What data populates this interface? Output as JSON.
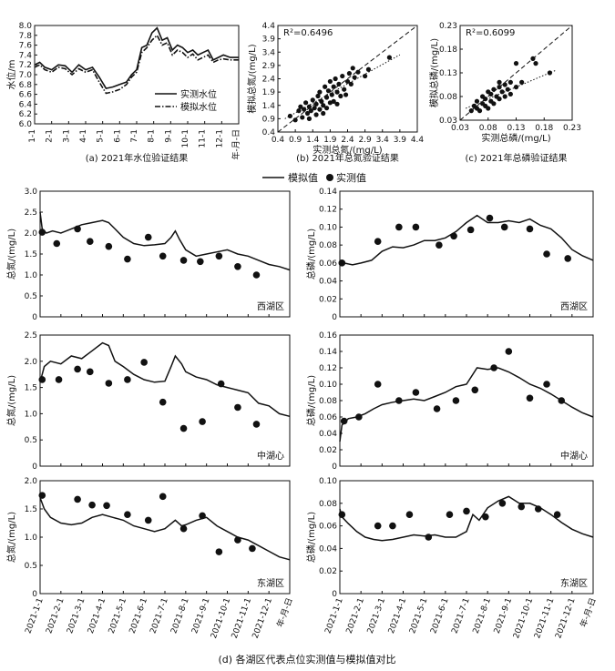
{
  "figure": {
    "legend_series": [
      "模拟值",
      "实测值"
    ],
    "bottom_caption": "(d) 各湖区代表点位实测值与模拟值对比",
    "month_ticks": [
      "2021-1-1",
      "2021-2-1",
      "2021-3-1",
      "2021-4-1",
      "2021-5-1",
      "2021-6-1",
      "2021-7-1",
      "2021-8-1",
      "2021-9-1",
      "2021-10-1",
      "2021-11-1",
      "2021-12-1",
      "年-月-日"
    ]
  },
  "chart_data": [
    {
      "id": "a",
      "type": "line",
      "caption": "(a) 2021年水位验证结果",
      "ylabel": "水位/m",
      "ylim": [
        6.0,
        8.0
      ],
      "yticks": [
        6.0,
        6.2,
        6.4,
        6.6,
        6.8,
        7.0,
        7.2,
        7.4,
        7.6,
        7.8,
        8.0
      ],
      "xticks": [
        "1-1",
        "2-1",
        "3-1",
        "4-1",
        "5-1",
        "6-1",
        "7-1",
        "8-1",
        "9-1",
        "10-1",
        "11-1",
        "12-1",
        "年-月-日"
      ],
      "legend": "right-center",
      "series": [
        {
          "name": "实测水位",
          "style": "solid",
          "x": [
            0,
            0.3,
            0.6,
            1.0,
            1.4,
            1.8,
            2.2,
            2.6,
            3.0,
            3.4,
            3.8,
            4.2,
            4.6,
            5.0,
            5.4,
            5.7,
            6.0,
            6.3,
            6.6,
            6.9,
            7.2,
            7.5,
            7.8,
            8.1,
            8.4,
            8.7,
            9.0,
            9.3,
            9.6,
            9.9,
            10.2,
            10.5,
            10.8,
            11.1,
            11.5,
            12.0
          ],
          "y": [
            7.2,
            7.25,
            7.15,
            7.1,
            7.2,
            7.18,
            7.05,
            7.2,
            7.1,
            7.15,
            6.95,
            6.72,
            6.75,
            6.8,
            6.85,
            7.0,
            7.1,
            7.55,
            7.6,
            7.85,
            7.95,
            7.7,
            7.75,
            7.5,
            7.6,
            7.55,
            7.45,
            7.5,
            7.4,
            7.45,
            7.5,
            7.3,
            7.35,
            7.4,
            7.35,
            7.35
          ]
        },
        {
          "name": "模拟水位",
          "style": "dashdot",
          "x": [
            0,
            0.3,
            0.6,
            1.0,
            1.4,
            1.8,
            2.2,
            2.6,
            3.0,
            3.4,
            3.8,
            4.2,
            4.6,
            5.0,
            5.4,
            5.7,
            6.0,
            6.3,
            6.6,
            6.9,
            7.2,
            7.5,
            7.8,
            8.1,
            8.4,
            8.7,
            9.0,
            9.3,
            9.6,
            9.9,
            10.2,
            10.5,
            10.8,
            11.1,
            11.5,
            12.0
          ],
          "y": [
            7.15,
            7.2,
            7.1,
            7.05,
            7.15,
            7.12,
            7.0,
            7.12,
            7.05,
            7.1,
            6.85,
            6.62,
            6.65,
            6.7,
            6.8,
            6.95,
            7.05,
            7.45,
            7.55,
            7.7,
            7.8,
            7.6,
            7.65,
            7.4,
            7.5,
            7.45,
            7.35,
            7.42,
            7.3,
            7.35,
            7.4,
            7.25,
            7.3,
            7.32,
            7.3,
            7.3
          ]
        }
      ]
    },
    {
      "id": "b",
      "type": "scatter",
      "caption": "(b) 2021年总氮验证结果",
      "xlabel": "实测总氮/(mg/L)",
      "ylabel": "模拟总氮/(mg/L)",
      "annotation": "R²=0.6496",
      "xlim": [
        0.4,
        4.4
      ],
      "ylim": [
        0.4,
        4.4
      ],
      "ticks": [
        0.4,
        0.9,
        1.4,
        1.9,
        2.4,
        2.9,
        3.4,
        3.9,
        4.4
      ],
      "points": [
        [
          0.75,
          1.0
        ],
        [
          0.9,
          0.85
        ],
        [
          1.0,
          1.2
        ],
        [
          1.05,
          1.35
        ],
        [
          1.1,
          0.95
        ],
        [
          1.15,
          1.25
        ],
        [
          1.2,
          1.5
        ],
        [
          1.25,
          1.1
        ],
        [
          1.3,
          1.35
        ],
        [
          1.3,
          0.9
        ],
        [
          1.35,
          1.2
        ],
        [
          1.4,
          1.6
        ],
        [
          1.45,
          1.3
        ],
        [
          1.5,
          1.05
        ],
        [
          1.5,
          1.45
        ],
        [
          1.55,
          1.75
        ],
        [
          1.6,
          1.25
        ],
        [
          1.6,
          1.9
        ],
        [
          1.65,
          1.55
        ],
        [
          1.7,
          1.1
        ],
        [
          1.7,
          1.4
        ],
        [
          1.75,
          2.1
        ],
        [
          1.8,
          1.7
        ],
        [
          1.8,
          1.3
        ],
        [
          1.85,
          1.95
        ],
        [
          1.9,
          1.5
        ],
        [
          1.9,
          2.3
        ],
        [
          1.95,
          1.8
        ],
        [
          2.0,
          2.1
        ],
        [
          2.0,
          1.55
        ],
        [
          2.05,
          2.4
        ],
        [
          2.1,
          1.9
        ],
        [
          2.1,
          1.45
        ],
        [
          2.15,
          2.2
        ],
        [
          2.2,
          1.75
        ],
        [
          2.25,
          2.5
        ],
        [
          2.3,
          2.0
        ],
        [
          2.35,
          1.8
        ],
        [
          2.4,
          2.3
        ],
        [
          2.45,
          2.6
        ],
        [
          2.5,
          2.2
        ],
        [
          2.55,
          2.8
        ],
        [
          2.6,
          2.45
        ],
        [
          2.7,
          2.65
        ],
        [
          2.9,
          2.5
        ],
        [
          3.0,
          2.75
        ],
        [
          3.6,
          3.2
        ]
      ],
      "fit": {
        "style": "dotted",
        "from": [
          0.6,
          0.9
        ],
        "to": [
          3.9,
          3.3
        ]
      },
      "one_to_one": {
        "style": "dashed"
      }
    },
    {
      "id": "c",
      "type": "scatter",
      "caption": "(c) 2021年总磷验证结果",
      "xlabel": "实测总磷/(mg/L)",
      "ylabel": "模拟总磷/(mg/L)",
      "annotation": "R²=0.6099",
      "xlim": [
        0.03,
        0.23
      ],
      "ylim": [
        0.03,
        0.23
      ],
      "ticks": [
        0.03,
        0.08,
        0.13,
        0.18,
        0.23
      ],
      "points": [
        [
          0.05,
          0.05
        ],
        [
          0.055,
          0.06
        ],
        [
          0.06,
          0.055
        ],
        [
          0.06,
          0.07
        ],
        [
          0.065,
          0.05
        ],
        [
          0.07,
          0.065
        ],
        [
          0.07,
          0.08
        ],
        [
          0.075,
          0.06
        ],
        [
          0.075,
          0.075
        ],
        [
          0.08,
          0.055
        ],
        [
          0.08,
          0.09
        ],
        [
          0.085,
          0.07
        ],
        [
          0.085,
          0.085
        ],
        [
          0.09,
          0.065
        ],
        [
          0.09,
          0.095
        ],
        [
          0.095,
          0.08
        ],
        [
          0.1,
          0.075
        ],
        [
          0.1,
          0.1
        ],
        [
          0.1,
          0.11
        ],
        [
          0.105,
          0.09
        ],
        [
          0.11,
          0.08
        ],
        [
          0.11,
          0.105
        ],
        [
          0.115,
          0.095
        ],
        [
          0.12,
          0.11
        ],
        [
          0.12,
          0.085
        ],
        [
          0.13,
          0.1
        ],
        [
          0.13,
          0.15
        ],
        [
          0.14,
          0.11
        ],
        [
          0.16,
          0.16
        ],
        [
          0.165,
          0.15
        ],
        [
          0.19,
          0.13
        ]
      ],
      "fit": {
        "style": "dotted",
        "from": [
          0.04,
          0.055
        ],
        "to": [
          0.2,
          0.135
        ]
      },
      "one_to_one": {
        "style": "dashed"
      }
    },
    {
      "id": "d1",
      "type": "line",
      "region": "西湖区",
      "ylabel": "总氮/(mg/L)",
      "ylim": [
        0,
        3.0
      ],
      "yticks": [
        0,
        0.5,
        1.0,
        1.5,
        2.0,
        2.5,
        3.0
      ],
      "sim": {
        "x": [
          0,
          0.1,
          0.3,
          0.6,
          1.0,
          1.5,
          2.0,
          2.5,
          3.0,
          3.3,
          3.6,
          4.0,
          4.5,
          5.0,
          5.5,
          6.0,
          6.3,
          6.5,
          6.7,
          7.0,
          7.5,
          8.0,
          8.5,
          9.0,
          9.5,
          10.0,
          10.5,
          11.0,
          11.5,
          12.0
        ],
        "y": [
          2.5,
          2.1,
          2.0,
          2.05,
          2.0,
          2.1,
          2.2,
          2.25,
          2.3,
          2.25,
          2.1,
          1.9,
          1.75,
          1.7,
          1.72,
          1.75,
          1.9,
          2.05,
          1.85,
          1.6,
          1.45,
          1.5,
          1.55,
          1.6,
          1.5,
          1.45,
          1.35,
          1.25,
          1.2,
          1.12
        ]
      },
      "obs": {
        "x": [
          0.1,
          0.8,
          1.8,
          2.4,
          3.3,
          4.2,
          5.2,
          5.9,
          6.9,
          7.7,
          8.6,
          9.5,
          10.4
        ],
        "y": [
          2.02,
          1.75,
          2.1,
          1.8,
          1.68,
          1.38,
          1.9,
          1.45,
          1.35,
          1.32,
          1.45,
          1.2,
          1.0
        ]
      }
    },
    {
      "id": "d2",
      "type": "line",
      "region": "西湖区",
      "ylabel": "总磷/(mg/L)",
      "ylim": [
        0,
        0.14
      ],
      "yticks": [
        0,
        0.02,
        0.04,
        0.06,
        0.08,
        0.1,
        0.12,
        0.14
      ],
      "sim": {
        "x": [
          0,
          0.2,
          0.6,
          1.0,
          1.5,
          2.0,
          2.5,
          3.0,
          3.5,
          4.0,
          4.5,
          5.0,
          5.5,
          6.0,
          6.5,
          7.0,
          7.5,
          8.0,
          8.5,
          9.0,
          9.5,
          10.0,
          10.5,
          11.0,
          11.5,
          12.0
        ],
        "y": [
          0.058,
          0.06,
          0.058,
          0.06,
          0.063,
          0.073,
          0.078,
          0.077,
          0.08,
          0.085,
          0.085,
          0.088,
          0.095,
          0.105,
          0.113,
          0.105,
          0.105,
          0.107,
          0.105,
          0.109,
          0.102,
          0.098,
          0.088,
          0.075,
          0.068,
          0.063
        ]
      },
      "obs": {
        "x": [
          0.1,
          1.8,
          2.8,
          3.6,
          4.7,
          5.4,
          6.2,
          7.1,
          7.8,
          9.0,
          9.8,
          10.8
        ],
        "y": [
          0.06,
          0.084,
          0.1,
          0.1,
          0.08,
          0.09,
          0.097,
          0.11,
          0.1,
          0.098,
          0.07,
          0.065
        ]
      }
    },
    {
      "id": "d3",
      "type": "line",
      "region": "中湖心",
      "ylabel": "总氮/(mg/L)",
      "ylim": [
        0,
        2.5
      ],
      "yticks": [
        0,
        0.5,
        1.0,
        1.5,
        2.0,
        2.5
      ],
      "sim": {
        "x": [
          0,
          0.2,
          0.5,
          1.0,
          1.5,
          2.0,
          2.5,
          3.0,
          3.3,
          3.6,
          4.0,
          4.5,
          5.0,
          5.5,
          6.0,
          6.3,
          6.5,
          6.8,
          7.0,
          7.5,
          8.0,
          8.5,
          9.0,
          9.5,
          10.0,
          10.5,
          11.0,
          11.5,
          12.0
        ],
        "y": [
          1.6,
          1.9,
          2.0,
          1.95,
          2.1,
          2.05,
          2.2,
          2.35,
          2.3,
          2.0,
          1.9,
          1.75,
          1.65,
          1.6,
          1.62,
          1.9,
          2.1,
          1.95,
          1.8,
          1.7,
          1.65,
          1.55,
          1.5,
          1.45,
          1.4,
          1.2,
          1.15,
          1.0,
          0.95
        ]
      },
      "obs": {
        "x": [
          0.1,
          0.9,
          1.8,
          2.4,
          3.3,
          4.2,
          5.0,
          5.9,
          6.9,
          7.8,
          8.7,
          9.5,
          10.4
        ],
        "y": [
          1.65,
          1.65,
          1.85,
          1.8,
          1.58,
          1.65,
          1.98,
          1.22,
          0.72,
          0.85,
          1.57,
          1.12,
          0.8
        ]
      }
    },
    {
      "id": "d4",
      "type": "line",
      "region": "中湖心",
      "ylabel": "总磷/(mg/L)",
      "ylim": [
        0,
        0.16
      ],
      "yticks": [
        0,
        0.02,
        0.04,
        0.06,
        0.08,
        0.1,
        0.12,
        0.14,
        0.16
      ],
      "sim": {
        "x": [
          0,
          0.1,
          0.4,
          0.8,
          1.2,
          1.6,
          2.0,
          2.5,
          3.0,
          3.5,
          4.0,
          4.5,
          5.0,
          5.5,
          6.0,
          6.5,
          7.0,
          7.5,
          8.0,
          8.5,
          9.0,
          9.5,
          10.0,
          10.5,
          11.0,
          11.5,
          12.0
        ],
        "y": [
          0.03,
          0.05,
          0.058,
          0.06,
          0.064,
          0.07,
          0.075,
          0.078,
          0.08,
          0.082,
          0.08,
          0.085,
          0.09,
          0.097,
          0.1,
          0.12,
          0.118,
          0.12,
          0.115,
          0.108,
          0.1,
          0.095,
          0.088,
          0.08,
          0.072,
          0.065,
          0.06
        ]
      },
      "obs": {
        "x": [
          0.2,
          0.9,
          1.8,
          2.8,
          3.6,
          4.6,
          5.5,
          6.4,
          7.3,
          8.0,
          9.0,
          9.8,
          10.5
        ],
        "y": [
          0.055,
          0.06,
          0.1,
          0.08,
          0.09,
          0.07,
          0.08,
          0.093,
          0.12,
          0.14,
          0.083,
          0.1,
          0.08
        ]
      }
    },
    {
      "id": "d5",
      "type": "line",
      "region": "东湖区",
      "ylabel": "总氮/(mg/L)",
      "ylim": [
        0,
        2.0
      ],
      "yticks": [
        0,
        0.5,
        1.0,
        1.5,
        2.0
      ],
      "sim": {
        "x": [
          0,
          0.2,
          0.5,
          1.0,
          1.5,
          2.0,
          2.5,
          3.0,
          3.5,
          4.0,
          4.5,
          5.0,
          5.5,
          6.0,
          6.5,
          6.8,
          7.0,
          7.5,
          8.0,
          8.5,
          9.0,
          9.5,
          10.0,
          10.5,
          11.0,
          11.5,
          12.0
        ],
        "y": [
          1.7,
          1.5,
          1.35,
          1.25,
          1.22,
          1.25,
          1.35,
          1.4,
          1.35,
          1.3,
          1.2,
          1.15,
          1.1,
          1.15,
          1.3,
          1.2,
          1.22,
          1.3,
          1.35,
          1.2,
          1.1,
          1.0,
          0.95,
          0.85,
          0.75,
          0.65,
          0.6
        ]
      },
      "obs": {
        "x": [
          0.1,
          1.8,
          2.5,
          3.2,
          4.2,
          5.2,
          5.9,
          6.9,
          7.8,
          8.6,
          9.5,
          10.2
        ],
        "y": [
          1.74,
          1.67,
          1.57,
          1.56,
          1.4,
          1.3,
          1.72,
          1.15,
          1.38,
          0.74,
          0.95,
          0.8
        ]
      }
    },
    {
      "id": "d6",
      "type": "line",
      "region": "东湖区",
      "ylabel": "总磷/(mg/L)",
      "ylim": [
        0,
        0.1
      ],
      "yticks": [
        0,
        0.02,
        0.04,
        0.06,
        0.08,
        0.1
      ],
      "sim": {
        "x": [
          0,
          0.1,
          0.4,
          0.8,
          1.2,
          1.6,
          2.0,
          2.5,
          3.0,
          3.5,
          4.0,
          4.5,
          5.0,
          5.5,
          6.0,
          6.3,
          6.6,
          7.0,
          7.5,
          8.0,
          8.5,
          9.0,
          9.5,
          10.0,
          10.5,
          11.0,
          11.5,
          12.0
        ],
        "y": [
          0.075,
          0.068,
          0.062,
          0.055,
          0.05,
          0.048,
          0.047,
          0.048,
          0.05,
          0.052,
          0.051,
          0.052,
          0.05,
          0.05,
          0.055,
          0.07,
          0.065,
          0.076,
          0.082,
          0.086,
          0.08,
          0.08,
          0.076,
          0.07,
          0.063,
          0.057,
          0.053,
          0.05
        ]
      },
      "obs": {
        "x": [
          0.1,
          1.8,
          2.5,
          3.3,
          4.2,
          5.2,
          6.0,
          6.9,
          7.7,
          8.6,
          9.4,
          10.3
        ],
        "y": [
          0.07,
          0.06,
          0.06,
          0.07,
          0.05,
          0.07,
          0.073,
          0.068,
          0.08,
          0.077,
          0.075,
          0.07
        ]
      }
    }
  ]
}
